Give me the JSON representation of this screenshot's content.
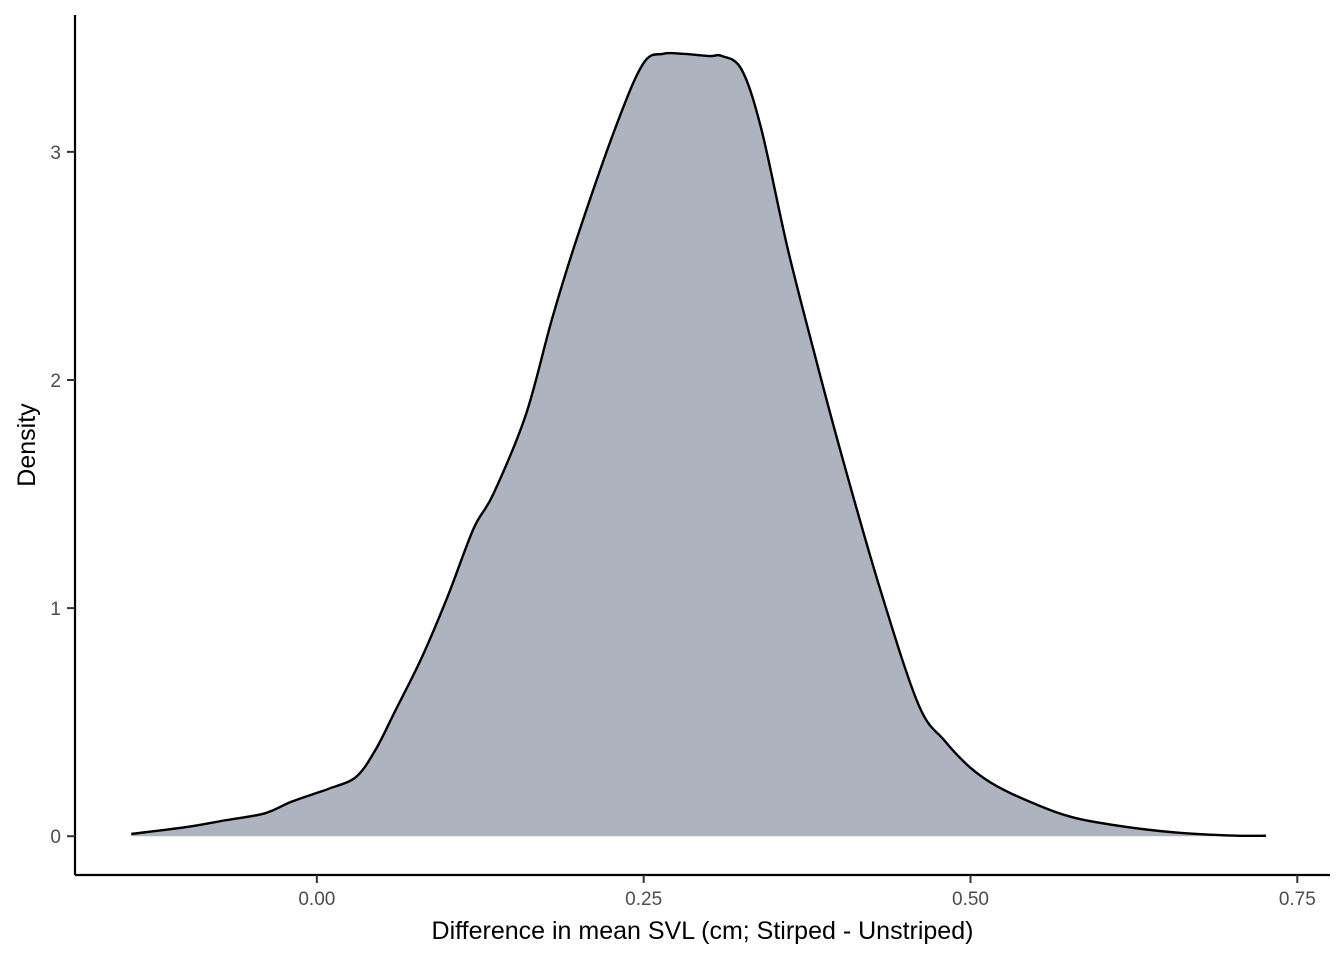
{
  "chart_data": {
    "type": "area",
    "xlabel": "Difference in mean SVL (cm; Stirped - Unstriped)",
    "ylabel": "Density",
    "xlim": [
      -0.185,
      0.775
    ],
    "ylim": [
      -0.17,
      3.6
    ],
    "x_ticks": [
      0.0,
      0.25,
      0.5,
      0.75
    ],
    "x_tick_labels": [
      "0.00",
      "0.25",
      "0.50",
      "0.75"
    ],
    "y_ticks": [
      0,
      1,
      2,
      3
    ],
    "y_tick_labels": [
      "0",
      "1",
      "2",
      "3"
    ],
    "grid": false,
    "legend": "none",
    "fill_color": "#aeb4bf",
    "line_color": "#000000",
    "series": [
      {
        "x": [
          -0.142,
          -0.1,
          -0.07,
          -0.04,
          -0.02,
          0.0,
          0.01,
          0.03,
          0.045,
          0.06,
          0.08,
          0.1,
          0.12,
          0.135,
          0.16,
          0.18,
          0.2,
          0.23,
          0.25,
          0.265,
          0.28,
          0.3,
          0.31,
          0.325,
          0.34,
          0.36,
          0.38,
          0.4,
          0.43,
          0.46,
          0.48,
          0.5,
          0.52,
          0.55,
          0.58,
          0.62,
          0.66,
          0.7,
          0.726
        ],
        "y": [
          0.01,
          0.04,
          0.07,
          0.1,
          0.15,
          0.19,
          0.21,
          0.26,
          0.38,
          0.55,
          0.78,
          1.05,
          1.35,
          1.5,
          1.85,
          2.27,
          2.64,
          3.13,
          3.39,
          3.43,
          3.43,
          3.42,
          3.42,
          3.36,
          3.1,
          2.58,
          2.13,
          1.7,
          1.1,
          0.58,
          0.42,
          0.3,
          0.22,
          0.14,
          0.08,
          0.04,
          0.015,
          0.003,
          0.002
        ]
      }
    ]
  }
}
